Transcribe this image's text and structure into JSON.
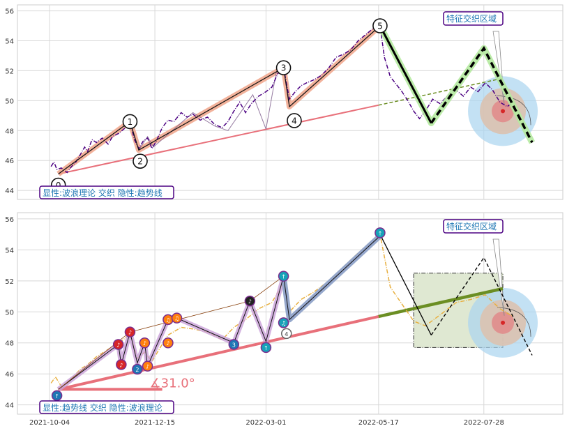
{
  "chart_data": {
    "type": "line",
    "x_ticks": [
      "2021-10-04",
      "2021-12-15",
      "2022-03-01",
      "2022-05-17",
      "2022-07-28"
    ],
    "panels": [
      {
        "id": "top",
        "y_ticks": [
          44,
          46,
          48,
          50,
          52,
          54,
          56
        ],
        "ylim": [
          43.4,
          56.4
        ],
        "info_label": "显性:波浪理论 交织 隐性:趋势线",
        "zone_label": "特征交织区域",
        "price_series": [
          [
            "2021-10-05",
            45.6
          ],
          [
            "2021-10-07",
            45.9
          ],
          [
            "2021-10-09",
            45.4
          ],
          [
            "2021-10-12",
            45.5
          ],
          [
            "2021-10-16",
            45.2
          ],
          [
            "2021-10-19",
            45.6
          ],
          [
            "2021-10-22",
            45.9
          ],
          [
            "2021-10-25",
            46.4
          ],
          [
            "2021-10-28",
            46.9
          ],
          [
            "2021-10-30",
            46.6
          ],
          [
            "2021-11-02",
            47.4
          ],
          [
            "2021-11-05",
            47.2
          ],
          [
            "2021-11-09",
            47.5
          ],
          [
            "2021-11-13",
            47.1
          ],
          [
            "2021-11-16",
            47.6
          ],
          [
            "2021-11-20",
            47.8
          ],
          [
            "2021-11-25",
            48.2
          ],
          [
            "2021-11-28",
            48.6
          ],
          [
            "2021-12-01",
            47.4
          ],
          [
            "2021-12-04",
            46.8
          ],
          [
            "2021-12-07",
            47.3
          ],
          [
            "2021-12-10",
            47.5
          ],
          [
            "2021-12-13",
            46.8
          ],
          [
            "2021-12-16",
            47.3
          ],
          [
            "2021-12-20",
            48.2
          ],
          [
            "2021-12-24",
            48.7
          ],
          [
            "2021-12-28",
            48.6
          ],
          [
            "2022-01-02",
            49.2
          ],
          [
            "2022-01-06",
            48.9
          ],
          [
            "2022-01-10",
            49.1
          ],
          [
            "2022-01-15",
            48.7
          ],
          [
            "2022-01-20",
            48.9
          ],
          [
            "2022-01-25",
            48.4
          ],
          [
            "2022-01-30",
            48.2
          ],
          [
            "2022-02-03",
            48.6
          ],
          [
            "2022-02-07",
            49.3
          ],
          [
            "2022-02-11",
            49.9
          ],
          [
            "2022-02-15",
            49.2
          ],
          [
            "2022-02-19",
            49.8
          ],
          [
            "2022-02-24",
            50.3
          ],
          [
            "2022-03-01",
            50.6
          ],
          [
            "2022-03-05",
            50.9
          ],
          [
            "2022-03-09",
            51.8
          ],
          [
            "2022-03-13",
            52.2
          ],
          [
            "2022-03-17",
            50.1
          ],
          [
            "2022-03-21",
            50.6
          ],
          [
            "2022-03-25",
            51.0
          ],
          [
            "2022-03-29",
            51.2
          ],
          [
            "2022-04-03",
            51.4
          ],
          [
            "2022-04-08",
            51.7
          ],
          [
            "2022-04-13",
            52.2
          ],
          [
            "2022-04-18",
            52.9
          ],
          [
            "2022-04-23",
            53.1
          ],
          [
            "2022-04-28",
            53.4
          ],
          [
            "2022-05-03",
            54.0
          ],
          [
            "2022-05-08",
            54.4
          ],
          [
            "2022-05-13",
            54.8
          ],
          [
            "2022-05-18",
            55.0
          ],
          [
            "2022-05-21",
            52.9
          ],
          [
            "2022-05-25",
            51.6
          ],
          [
            "2022-05-29",
            51.1
          ],
          [
            "2022-06-02",
            50.6
          ],
          [
            "2022-06-06",
            50.0
          ],
          [
            "2022-06-10",
            49.3
          ],
          [
            "2022-06-14",
            48.8
          ],
          [
            "2022-06-18",
            49.3
          ],
          [
            "2022-06-23",
            50.1
          ],
          [
            "2022-06-28",
            49.8
          ],
          [
            "2022-07-04",
            50.4
          ],
          [
            "2022-07-09",
            50.7
          ],
          [
            "2022-07-14",
            50.3
          ],
          [
            "2022-07-19",
            50.9
          ],
          [
            "2022-07-24",
            50.6
          ],
          [
            "2022-07-29",
            51.2
          ],
          [
            "2022-08-03",
            50.7
          ],
          [
            "2022-08-08",
            49.9
          ],
          [
            "2022-08-13",
            49.6
          ],
          [
            "2022-08-17",
            49.9
          ]
        ],
        "wave_points": [
          {
            "label": "0",
            "date": "2021-10-10",
            "value": 45.1
          },
          {
            "label": "1",
            "date": "2021-11-28",
            "value": 48.6
          },
          {
            "label": "2",
            "date": "2021-12-04",
            "value": 46.7
          },
          {
            "label": "3",
            "date": "2022-03-13",
            "value": 52.2
          },
          {
            "label": "4",
            "date": "2022-03-17",
            "value": 49.6
          },
          {
            "label": "5",
            "date": "2022-05-18",
            "value": 55.0
          }
        ],
        "wave_extra": [
          [
            "2021-12-10",
            47.6
          ],
          [
            "2021-12-14",
            46.9
          ],
          [
            "2022-01-10",
            49.2
          ],
          [
            "2022-01-25",
            48.3
          ],
          [
            "2022-02-03",
            48.0
          ],
          [
            "2022-02-20",
            50.4
          ],
          [
            "2022-03-01",
            48.1
          ],
          [
            "2022-03-08",
            51.9
          ]
        ],
        "projection": [
          [
            "2022-05-18",
            55.0
          ],
          [
            "2022-06-22",
            48.5
          ],
          [
            "2022-07-28",
            53.5
          ],
          [
            "2022-08-30",
            47.2
          ]
        ],
        "trend_line": [
          [
            "2021-10-10",
            45.1
          ],
          [
            "2022-05-17",
            49.7
          ]
        ],
        "trend_projection": [
          [
            "2022-05-17",
            49.7
          ],
          [
            "2022-08-10",
            51.5
          ]
        ],
        "target_center": [
          "2022-08-10",
          49.3
        ]
      },
      {
        "id": "bottom",
        "y_ticks": [
          44,
          46,
          48,
          50,
          52,
          54,
          56
        ],
        "ylim": [
          43.4,
          56.4
        ],
        "info_label": "显性:趋势线 交织 隐性:波浪理论",
        "zone_label": "特征交织区域",
        "angle_label": "∡31.0°",
        "price_series": [
          [
            "2021-10-05",
            45.4
          ],
          [
            "2021-10-08",
            45.8
          ],
          [
            "2021-10-12",
            45.2
          ],
          [
            "2021-10-16",
            45.4
          ],
          [
            "2021-10-20",
            45.8
          ],
          [
            "2021-10-25",
            46.3
          ],
          [
            "2021-10-30",
            46.6
          ],
          [
            "2021-11-05",
            47.1
          ],
          [
            "2021-11-10",
            47.4
          ],
          [
            "2021-11-15",
            47.7
          ],
          [
            "2021-11-22",
            48.1
          ],
          [
            "2021-11-28",
            48.6
          ],
          [
            "2021-12-03",
            47.0
          ],
          [
            "2021-12-08",
            47.4
          ],
          [
            "2021-12-13",
            46.8
          ],
          [
            "2021-12-18",
            47.6
          ],
          [
            "2021-12-24",
            48.5
          ],
          [
            "2022-01-02",
            49.0
          ],
          [
            "2022-01-10",
            48.9
          ],
          [
            "2022-01-20",
            48.7
          ],
          [
            "2022-01-30",
            48.2
          ],
          [
            "2022-02-07",
            49.0
          ],
          [
            "2022-02-15",
            49.5
          ],
          [
            "2022-02-24",
            50.2
          ],
          [
            "2022-03-05",
            50.6
          ],
          [
            "2022-03-13",
            51.9
          ],
          [
            "2022-03-17",
            50.0
          ],
          [
            "2022-03-25",
            50.8
          ],
          [
            "2022-04-03",
            51.3
          ],
          [
            "2022-04-13",
            52.0
          ],
          [
            "2022-04-23",
            52.9
          ],
          [
            "2022-05-03",
            53.8
          ],
          [
            "2022-05-13",
            54.6
          ],
          [
            "2022-05-18",
            55.0
          ],
          [
            "2022-05-25",
            51.6
          ],
          [
            "2022-06-02",
            50.5
          ],
          [
            "2022-06-10",
            49.4
          ],
          [
            "2022-06-18",
            49.1
          ],
          [
            "2022-06-28",
            49.8
          ],
          [
            "2022-07-09",
            50.6
          ],
          [
            "2022-07-19",
            50.8
          ],
          [
            "2022-07-29",
            51.1
          ],
          [
            "2022-08-08",
            50.2
          ],
          [
            "2022-08-17",
            49.7
          ]
        ],
        "wave_path": [
          [
            "2021-10-10",
            45.0
          ],
          [
            "2021-11-20",
            47.9
          ],
          [
            "2021-11-22",
            46.6
          ],
          [
            "2021-11-28",
            48.7
          ],
          [
            "2021-12-03",
            46.7
          ],
          [
            "2021-12-08",
            48.0
          ],
          [
            "2021-12-10",
            46.5
          ],
          [
            "2021-12-24",
            49.5
          ],
          [
            "2021-12-30",
            49.6
          ],
          [
            "2022-02-07",
            48.0
          ],
          [
            "2022-02-18",
            50.7
          ],
          [
            "2022-03-01",
            48.1
          ],
          [
            "2022-03-13",
            52.3
          ],
          [
            "2022-03-17",
            49.5
          ],
          [
            "2022-05-18",
            54.9
          ]
        ],
        "markers": [
          {
            "label": "↑",
            "date": "2021-10-09",
            "value": 44.6,
            "color": "#1f77b4"
          },
          {
            "label": "♪",
            "date": "2021-11-20",
            "value": 47.9,
            "color": "#d62728"
          },
          {
            "label": "♪",
            "date": "2021-11-22",
            "value": 46.6,
            "color": "#d62728"
          },
          {
            "label": "♪",
            "date": "2021-11-28",
            "value": 48.7,
            "color": "#d62728"
          },
          {
            "label": "2",
            "date": "2021-12-03",
            "value": 46.3,
            "color": "#1f77b4"
          },
          {
            "label": "♪",
            "date": "2021-12-08",
            "value": 48.0,
            "color": "#ff7f0e"
          },
          {
            "label": "♪",
            "date": "2021-12-10",
            "value": 46.5,
            "color": "#ff7f0e"
          },
          {
            "label": "♫",
            "date": "2021-12-24",
            "value": 49.5,
            "color": "#ff7f0e"
          },
          {
            "label": "♫",
            "date": "2021-12-30",
            "value": 49.6,
            "color": "#ff7f0e"
          },
          {
            "label": "♪",
            "date": "2021-12-24",
            "value": 48.0,
            "color": "#ff7f0e"
          },
          {
            "label": "3",
            "date": "2022-02-07",
            "value": 47.9,
            "color": "#1f77b4"
          },
          {
            "label": "♪",
            "date": "2022-02-18",
            "value": 50.7,
            "color": "#222222"
          },
          {
            "label": "↑",
            "date": "2022-03-01",
            "value": 47.7,
            "color": "#17a2b8"
          },
          {
            "label": "↑",
            "date": "2022-03-13",
            "value": 52.3,
            "color": "#17a2b8"
          },
          {
            "label": "♫",
            "date": "2022-03-13",
            "value": 49.3,
            "color": "#17a2b8"
          },
          {
            "label": "4",
            "date": "2022-03-15",
            "value": 48.6,
            "color": "#ffffff"
          },
          {
            "label": "↑",
            "date": "2022-05-18",
            "value": 55.1,
            "color": "#17a2b8"
          }
        ],
        "projection": [
          [
            "2022-05-18",
            55.0
          ],
          [
            "2022-06-22",
            48.5
          ],
          [
            "2022-07-28",
            53.5
          ],
          [
            "2022-08-30",
            47.2
          ]
        ],
        "trend_line": [
          [
            "2021-10-10",
            45.0
          ],
          [
            "2022-05-17",
            49.7
          ]
        ],
        "trend_projection": [
          [
            "2022-05-17",
            49.7
          ],
          [
            "2022-08-10",
            51.5
          ]
        ],
        "angle_baseline": [
          [
            "2021-10-10",
            45.0
          ],
          [
            "2021-12-20",
            45.0
          ]
        ],
        "zone_rect": {
          "x0": "2022-06-10",
          "x1": "2022-08-10",
          "y0": 47.7,
          "y1": 52.5
        },
        "target_center": [
          "2022-08-10",
          49.3
        ]
      }
    ]
  }
}
